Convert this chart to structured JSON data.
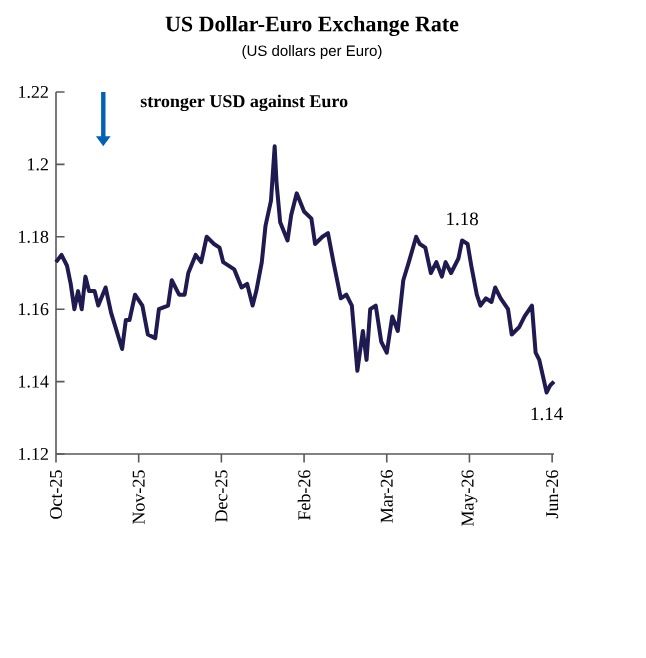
{
  "chart_data": {
    "type": "line",
    "title": "US Dollar-Euro Exchange Rate",
    "subtitle": "(US dollars per Euro)",
    "x": [
      "2025-10-01",
      "2025-10-04",
      "2025-10-07",
      "2025-10-09",
      "2025-10-11",
      "2025-10-13",
      "2025-10-15",
      "2025-10-17",
      "2025-10-19",
      "2025-10-22",
      "2025-10-24",
      "2025-10-28",
      "2025-10-31",
      "2025-11-03",
      "2025-11-06",
      "2025-11-08",
      "2025-11-10",
      "2025-11-13",
      "2025-11-17",
      "2025-11-20",
      "2025-11-24",
      "2025-11-26",
      "2025-12-01",
      "2025-12-03",
      "2025-12-07",
      "2025-12-10",
      "2025-12-12",
      "2025-12-16",
      "2025-12-19",
      "2025-12-22",
      "2025-12-26",
      "2025-12-29",
      "2025-12-31",
      "2026-01-06",
      "2026-01-10",
      "2026-01-13",
      "2026-01-16",
      "2026-01-18",
      "2026-01-21",
      "2026-01-23",
      "2026-01-26",
      "2026-01-28",
      "2026-01-29",
      "2026-01-31",
      "2026-02-04",
      "2026-02-06",
      "2026-02-09",
      "2026-02-13",
      "2026-02-17",
      "2026-02-19",
      "2026-02-23",
      "2026-02-26",
      "2026-03-01",
      "2026-03-05",
      "2026-03-08",
      "2026-03-11",
      "2026-03-14",
      "2026-03-17",
      "2026-03-19",
      "2026-03-21",
      "2026-03-24",
      "2026-03-27",
      "2026-03-30",
      "2026-04-02",
      "2026-04-05",
      "2026-04-08",
      "2026-04-11",
      "2026-04-15",
      "2026-04-17",
      "2026-04-20",
      "2026-04-23",
      "2026-04-26",
      "2026-04-29",
      "2026-05-01",
      "2026-05-04",
      "2026-05-08",
      "2026-05-10",
      "2026-05-13",
      "2026-05-15",
      "2026-05-18",
      "2026-05-20",
      "2026-05-23",
      "2026-05-26",
      "2026-05-28",
      "2026-05-31",
      "2026-06-04",
      "2026-06-06",
      "2026-06-10",
      "2026-06-13",
      "2026-06-17",
      "2026-06-19",
      "2026-06-21",
      "2026-06-25",
      "2026-06-27",
      "2026-06-29"
    ],
    "values": [
      1.173,
      1.175,
      1.172,
      1.167,
      1.16,
      1.165,
      1.16,
      1.169,
      1.165,
      1.165,
      1.161,
      1.166,
      1.159,
      1.154,
      1.149,
      1.157,
      1.157,
      1.164,
      1.161,
      1.153,
      1.152,
      1.16,
      1.161,
      1.168,
      1.164,
      1.164,
      1.17,
      1.175,
      1.173,
      1.18,
      1.178,
      1.177,
      1.173,
      1.171,
      1.166,
      1.167,
      1.161,
      1.165,
      1.173,
      1.183,
      1.19,
      1.205,
      1.195,
      1.184,
      1.179,
      1.186,
      1.192,
      1.187,
      1.185,
      1.178,
      1.18,
      1.181,
      1.173,
      1.163,
      1.164,
      1.161,
      1.143,
      1.154,
      1.146,
      1.16,
      1.161,
      1.151,
      1.148,
      1.158,
      1.154,
      1.168,
      1.173,
      1.18,
      1.178,
      1.177,
      1.17,
      1.173,
      1.169,
      1.173,
      1.17,
      1.174,
      1.179,
      1.178,
      1.172,
      1.164,
      1.161,
      1.163,
      1.162,
      1.166,
      1.163,
      1.16,
      1.153,
      1.155,
      1.158,
      1.161,
      1.148,
      1.146,
      1.137,
      1.139,
      1.14
    ],
    "color": "#1f1a50",
    "xlim": [
      "2025-10-01",
      "2026-06-29"
    ],
    "ylim": [
      1.12,
      1.22
    ],
    "xticks": [
      {
        "value": "2025-10-01",
        "label": "Oct-25"
      },
      {
        "value": "2025-11-15",
        "label": "Nov-25"
      },
      {
        "value": "2025-12-30",
        "label": "Dec-25"
      },
      {
        "value": "2026-02-13",
        "label": "Feb-26"
      },
      {
        "value": "2026-03-30",
        "label": "Mar-26"
      },
      {
        "value": "2026-05-14",
        "label": "May-26"
      },
      {
        "value": "2026-06-28",
        "label": "Jun-26"
      }
    ],
    "yticks": [
      1.12,
      1.14,
      1.16,
      1.18,
      1.2,
      1.22
    ],
    "annotations": [
      "stronger USD against Euro",
      {
        "text": "1.18",
        "x": "2026-05-10",
        "y": 1.179
      },
      {
        "text": "1.14",
        "x": "2026-06-25",
        "y": 1.137
      }
    ]
  }
}
